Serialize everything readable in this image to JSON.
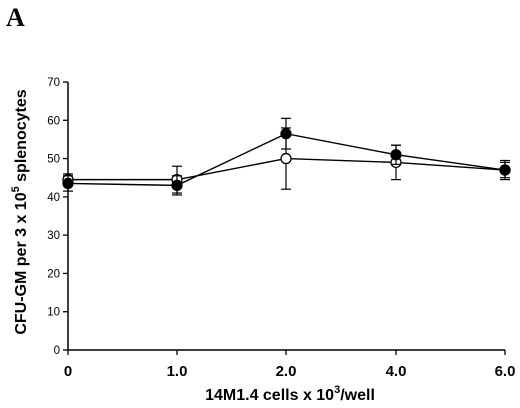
{
  "chart_data": {
    "type": "line",
    "panel_label": "A",
    "x": [
      "0",
      "1.0",
      "2.0",
      "4.0",
      "6.0"
    ],
    "xlabel": {
      "main": "14M1.4 cells x 10",
      "sup": "3",
      "suffix": "/well"
    },
    "ylabel": {
      "main": "CFU-GM per 3 x 10",
      "sup": "5",
      "suffix": " splenocytes"
    },
    "ylim": [
      0,
      70
    ],
    "yticks": [
      "0",
      "10",
      "20",
      "30",
      "40",
      "50",
      "60",
      "70"
    ],
    "series": [
      {
        "marker": "filled-circle",
        "color": "#000000",
        "values": [
          43.5,
          43.0,
          56.5,
          51.0,
          47.0
        ],
        "error": [
          2.0,
          2.5,
          4.0,
          2.5,
          2.5
        ]
      },
      {
        "marker": "open-circle",
        "color": "#000000",
        "values": [
          44.5,
          44.5,
          50.0,
          49.0,
          47.0
        ],
        "error": [
          1.5,
          3.5,
          8.0,
          4.5,
          2.0
        ]
      }
    ]
  }
}
